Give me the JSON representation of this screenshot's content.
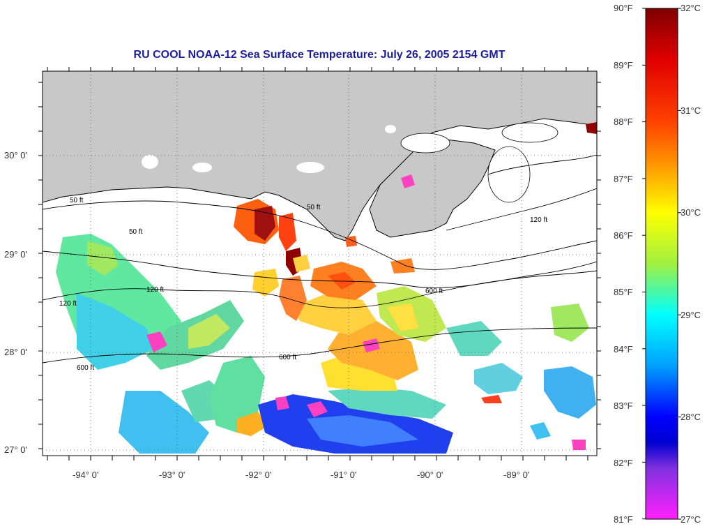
{
  "title": "RU COOL  NOAA-12  Sea Surface Temperature:  July 26, 2005 2154 GMT",
  "latitude_labels": [
    "30° 0'",
    "29° 0'",
    "28° 0'",
    "27° 0'"
  ],
  "longitude_labels": [
    "-94° 0'",
    "-93° 0'",
    "-92° 0'",
    "-91° 0'",
    "-90° 0'",
    "-89° 0'"
  ],
  "contour_labels": [
    "50 ft",
    "120 ft",
    "600 ft"
  ],
  "colorbar": {
    "fahrenheit_labels": [
      "90°F",
      "89°F",
      "88°F",
      "87°F",
      "86°F",
      "85°F",
      "84°F",
      "83°F",
      "82°F",
      "81°F"
    ],
    "celsius_labels": [
      "32°C",
      "31°C",
      "30°C",
      "29°C",
      "28°C",
      "27°C"
    ],
    "colors": [
      "#8b0000",
      "#ff0000",
      "#ff8c00",
      "#ffff00",
      "#90ee40",
      "#00ffff",
      "#0000ff",
      "#8a2be2",
      "#ff33cc"
    ]
  },
  "colors": {
    "land": "#c8c8c8",
    "ocean_no_data": "#ffffff",
    "title": "#1c1ca0"
  }
}
